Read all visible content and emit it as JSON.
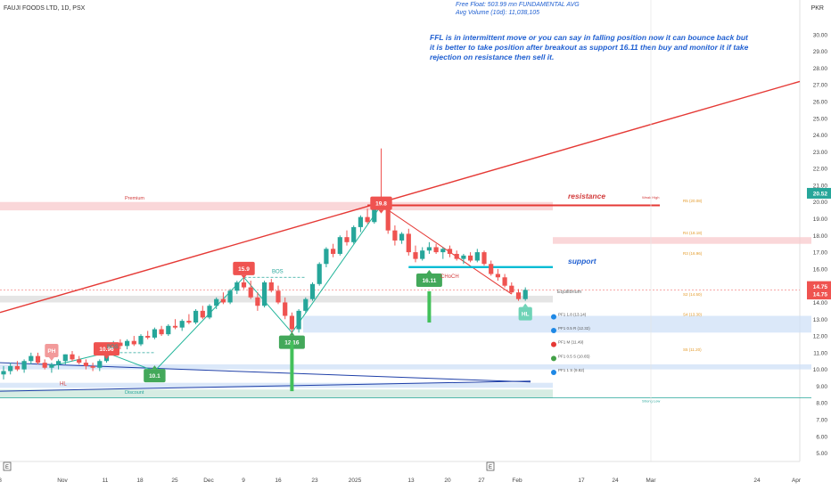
{
  "header": {
    "symbol_line": "FAUJI FOODS LTD, 1D, PSX",
    "currency": "PKR",
    "free_float": "Free Float: 503.99 mn FUNDAMENTAL AVG",
    "avg_volume": "Avg Volume (10d): 11,038,105"
  },
  "annotation_text": "FFL is in intermittent move or you can say in falling position now it can bounce back but it is better to take position after breakout as support 16.11 then buy and monitor it if take rejection on resistance then sell it.",
  "colors": {
    "up": "#26a69a",
    "down": "#ef5350",
    "trend": "#e53935",
    "support": "#00bcd4",
    "zone_red": "#f8c9cc",
    "zone_blue": "#cfe0f7",
    "zone_green": "#c8e6d9",
    "zone_gray": "#dcdcdc",
    "note": "#1f5fd1"
  },
  "chart_data": {
    "type": "candlestick",
    "ylim": [
      4.5,
      31.0
    ],
    "y_ticks": [
      "30.00",
      "29.00",
      "28.00",
      "27.00",
      "26.00",
      "25.00",
      "24.00",
      "23.00",
      "22.00",
      "21.00",
      "20.00",
      "19.00",
      "18.00",
      "17.00",
      "16.00",
      "15.00",
      "14.00",
      "13.00",
      "12.00",
      "11.00",
      "10.00",
      "9.00",
      "8.00",
      "7.00",
      "6.00",
      "5.00"
    ],
    "x_ticks": [
      "8",
      "Nov",
      "11",
      "18",
      "25",
      "Dec",
      "9",
      "16",
      "23",
      "2025",
      "13",
      "20",
      "27",
      "Feb",
      "17",
      "24",
      "Mar",
      "24",
      "Apr"
    ],
    "last_price_badges": [
      "20.52",
      "14.75",
      "14.75"
    ],
    "candles": [
      {
        "o": 9.7,
        "h": 10.2,
        "l": 9.4,
        "c": 9.9
      },
      {
        "o": 9.9,
        "h": 10.4,
        "l": 9.7,
        "c": 10.2
      },
      {
        "o": 10.2,
        "h": 10.5,
        "l": 9.9,
        "c": 10.0
      },
      {
        "o": 10.0,
        "h": 10.6,
        "l": 9.8,
        "c": 10.5
      },
      {
        "o": 10.5,
        "h": 11.0,
        "l": 10.3,
        "c": 10.8
      },
      {
        "o": 10.8,
        "h": 11.0,
        "l": 10.3,
        "c": 10.4
      },
      {
        "o": 10.4,
        "h": 10.6,
        "l": 10.0,
        "c": 10.1
      },
      {
        "o": 10.1,
        "h": 10.4,
        "l": 9.8,
        "c": 10.3
      },
      {
        "o": 10.3,
        "h": 10.6,
        "l": 10.0,
        "c": 10.5
      },
      {
        "o": 10.5,
        "h": 10.9,
        "l": 10.3,
        "c": 10.9
      },
      {
        "o": 10.9,
        "h": 11.1,
        "l": 10.5,
        "c": 10.6
      },
      {
        "o": 10.6,
        "h": 10.8,
        "l": 10.3,
        "c": 10.4
      },
      {
        "o": 10.4,
        "h": 10.6,
        "l": 10.0,
        "c": 10.2
      },
      {
        "o": 10.2,
        "h": 10.4,
        "l": 9.9,
        "c": 10.1
      },
      {
        "o": 10.1,
        "h": 10.6,
        "l": 9.9,
        "c": 10.5
      },
      {
        "o": 10.5,
        "h": 11.1,
        "l": 10.4,
        "c": 11.0
      },
      {
        "o": 11.0,
        "h": 11.7,
        "l": 10.9,
        "c": 11.6
      },
      {
        "o": 11.6,
        "h": 11.8,
        "l": 11.2,
        "c": 11.4
      },
      {
        "o": 11.4,
        "h": 11.8,
        "l": 11.2,
        "c": 11.7
      },
      {
        "o": 11.7,
        "h": 12.0,
        "l": 11.4,
        "c": 11.5
      },
      {
        "o": 11.5,
        "h": 12.1,
        "l": 11.4,
        "c": 12.0
      },
      {
        "o": 12.0,
        "h": 12.3,
        "l": 11.8,
        "c": 11.9
      },
      {
        "o": 11.9,
        "h": 12.5,
        "l": 11.8,
        "c": 12.4
      },
      {
        "o": 12.4,
        "h": 12.6,
        "l": 12.0,
        "c": 12.1
      },
      {
        "o": 12.1,
        "h": 12.7,
        "l": 12.0,
        "c": 12.6
      },
      {
        "o": 12.6,
        "h": 13.0,
        "l": 12.4,
        "c": 12.5
      },
      {
        "o": 12.5,
        "h": 13.0,
        "l": 12.3,
        "c": 12.9
      },
      {
        "o": 12.9,
        "h": 13.3,
        "l": 12.7,
        "c": 12.8
      },
      {
        "o": 12.8,
        "h": 13.6,
        "l": 12.7,
        "c": 13.5
      },
      {
        "o": 13.5,
        "h": 13.8,
        "l": 13.0,
        "c": 13.1
      },
      {
        "o": 13.1,
        "h": 13.9,
        "l": 13.0,
        "c": 13.8
      },
      {
        "o": 13.8,
        "h": 14.3,
        "l": 13.6,
        "c": 14.2
      },
      {
        "o": 14.2,
        "h": 14.6,
        "l": 13.9,
        "c": 14.0
      },
      {
        "o": 14.0,
        "h": 14.8,
        "l": 13.9,
        "c": 14.7
      },
      {
        "o": 14.7,
        "h": 15.3,
        "l": 14.5,
        "c": 15.2
      },
      {
        "o": 15.2,
        "h": 15.6,
        "l": 14.8,
        "c": 14.9
      },
      {
        "o": 14.9,
        "h": 15.3,
        "l": 14.2,
        "c": 14.3
      },
      {
        "o": 14.3,
        "h": 14.6,
        "l": 13.5,
        "c": 13.8
      },
      {
        "o": 13.8,
        "h": 15.3,
        "l": 13.7,
        "c": 15.2
      },
      {
        "o": 15.2,
        "h": 15.4,
        "l": 14.6,
        "c": 14.7
      },
      {
        "o": 14.7,
        "h": 15.0,
        "l": 13.9,
        "c": 14.0
      },
      {
        "o": 14.0,
        "h": 14.3,
        "l": 13.0,
        "c": 13.2
      },
      {
        "o": 13.2,
        "h": 13.4,
        "l": 12.2,
        "c": 12.4
      },
      {
        "o": 12.4,
        "h": 13.6,
        "l": 12.2,
        "c": 13.5
      },
      {
        "o": 13.5,
        "h": 14.3,
        "l": 13.4,
        "c": 14.2
      },
      {
        "o": 14.2,
        "h": 15.2,
        "l": 14.1,
        "c": 15.1
      },
      {
        "o": 15.1,
        "h": 16.4,
        "l": 15.0,
        "c": 16.3
      },
      {
        "o": 16.3,
        "h": 17.3,
        "l": 16.1,
        "c": 17.2
      },
      {
        "o": 17.2,
        "h": 17.5,
        "l": 16.7,
        "c": 16.9
      },
      {
        "o": 16.9,
        "h": 18.0,
        "l": 16.8,
        "c": 17.9
      },
      {
        "o": 17.9,
        "h": 18.3,
        "l": 17.4,
        "c": 17.6
      },
      {
        "o": 17.6,
        "h": 18.6,
        "l": 17.5,
        "c": 18.5
      },
      {
        "o": 18.5,
        "h": 19.2,
        "l": 18.2,
        "c": 19.1
      },
      {
        "o": 19.1,
        "h": 19.6,
        "l": 18.7,
        "c": 18.8
      },
      {
        "o": 18.8,
        "h": 20.0,
        "l": 18.7,
        "c": 19.9
      },
      {
        "o": 19.9,
        "h": 23.2,
        "l": 19.6,
        "c": 19.8
      },
      {
        "o": 19.8,
        "h": 20.1,
        "l": 18.1,
        "c": 18.3
      },
      {
        "o": 18.3,
        "h": 18.6,
        "l": 17.4,
        "c": 17.7
      },
      {
        "o": 17.7,
        "h": 18.2,
        "l": 17.5,
        "c": 18.1
      },
      {
        "o": 18.1,
        "h": 18.4,
        "l": 16.8,
        "c": 17.0
      },
      {
        "o": 17.0,
        "h": 17.4,
        "l": 16.4,
        "c": 16.6
      },
      {
        "o": 16.6,
        "h": 17.3,
        "l": 16.5,
        "c": 17.1
      },
      {
        "o": 17.1,
        "h": 17.6,
        "l": 16.9,
        "c": 17.3
      },
      {
        "o": 17.3,
        "h": 17.5,
        "l": 16.9,
        "c": 17.0
      },
      {
        "o": 17.0,
        "h": 17.3,
        "l": 16.6,
        "c": 17.2
      },
      {
        "o": 17.2,
        "h": 17.4,
        "l": 16.7,
        "c": 16.9
      },
      {
        "o": 16.9,
        "h": 17.1,
        "l": 16.5,
        "c": 16.6
      },
      {
        "o": 16.6,
        "h": 16.9,
        "l": 16.3,
        "c": 16.8
      },
      {
        "o": 16.8,
        "h": 17.0,
        "l": 16.4,
        "c": 16.5
      },
      {
        "o": 16.5,
        "h": 17.2,
        "l": 16.4,
        "c": 17.0
      },
      {
        "o": 17.0,
        "h": 17.1,
        "l": 16.2,
        "c": 16.3
      },
      {
        "o": 16.3,
        "h": 16.5,
        "l": 15.6,
        "c": 15.7
      },
      {
        "o": 15.7,
        "h": 16.0,
        "l": 15.3,
        "c": 15.5
      },
      {
        "o": 15.5,
        "h": 15.7,
        "l": 14.9,
        "c": 15.0
      },
      {
        "o": 15.0,
        "h": 15.2,
        "l": 14.5,
        "c": 14.6
      },
      {
        "o": 14.6,
        "h": 14.8,
        "l": 14.1,
        "c": 14.2
      },
      {
        "o": 14.2,
        "h": 14.9,
        "l": 14.1,
        "c": 14.75
      }
    ],
    "zones": [
      {
        "name": "premium",
        "y0": 19.5,
        "y1": 20.0
      },
      {
        "name": "resistance-zone-right",
        "y0": 17.5,
        "y1": 17.9
      },
      {
        "name": "equilibrium",
        "y0": 14.0,
        "y1": 14.4
      },
      {
        "name": "discount-blue",
        "y0": 12.2,
        "y1": 13.2
      },
      {
        "name": "low-blue",
        "y0": 10.0,
        "y1": 10.3
      },
      {
        "name": "bottom-blue",
        "y0": 8.9,
        "y1": 9.2
      },
      {
        "name": "discount-green",
        "y0": 8.3,
        "y1": 8.8
      }
    ],
    "resistance_level": 19.8,
    "support_level": 16.11,
    "price_line": 14.75,
    "labels": {
      "premium": "Premium",
      "discount": "Discount",
      "equilibrium": "Equilibrium",
      "resistance": "resistance",
      "support": "support",
      "choch": "CHoCH",
      "bos1": "BOS",
      "bos2": "BOS",
      "hl": "HL",
      "weak_high": "Weak High",
      "strong_low": "Strong Low"
    },
    "swing_labels": [
      {
        "text": "PH",
        "x": 7,
        "y": 11.1,
        "kind": "down"
      },
      {
        "text": "10.96",
        "x": 15,
        "y": 11.2,
        "kind": "down"
      },
      {
        "text": "10.1",
        "x": 22,
        "y": 9.6,
        "kind": "up"
      },
      {
        "text": "15.9",
        "x": 35,
        "y": 16.0,
        "kind": "down"
      },
      {
        "text": "12.16",
        "x": 42,
        "y": 11.6,
        "kind": "up"
      },
      {
        "text": "19.8",
        "x": 55,
        "y": 19.9,
        "kind": "down"
      },
      {
        "text": "16.11",
        "x": 62,
        "y": 15.3,
        "kind": "up"
      },
      {
        "text": "HL",
        "x": 76,
        "y": 13.3,
        "kind": "upl"
      }
    ],
    "pivots": [
      {
        "text": "R5 (20.08)",
        "y": 20.08
      },
      {
        "text": "R4 (18.18)",
        "y": 18.18
      },
      {
        "text": "R3 (16.96)",
        "y": 16.96
      },
      {
        "text": "S2 (14.50)",
        "y": 14.5
      },
      {
        "text": "S4 (13.30)",
        "y": 13.3
      },
      {
        "text": "S5 (11.20)",
        "y": 11.2
      }
    ],
    "fib_labels": [
      {
        "text": "PF1 1.8 (13.14)",
        "y": 13.14
      },
      {
        "text": "PF1 0.5 R (12.32)",
        "y": 12.32
      },
      {
        "text": "PF1 M (11.49)",
        "y": 11.49
      },
      {
        "text": "PF1 0.5 S (10.65)",
        "y": 10.65
      },
      {
        "text": "PF1 1 S (9.82)",
        "y": 9.82
      }
    ]
  }
}
